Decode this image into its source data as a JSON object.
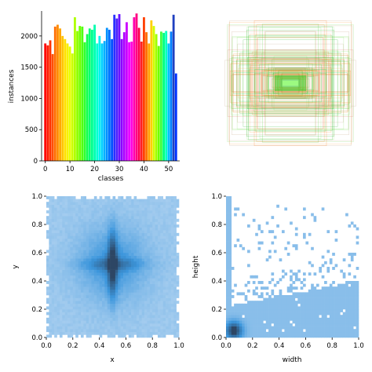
{
  "chart_data": [
    {
      "type": "bar",
      "xlabel": "classes",
      "ylabel": "instances",
      "xlim": [
        -1.5,
        54.5
      ],
      "ylim": [
        0,
        2400
      ],
      "xticks": [
        0,
        10,
        20,
        30,
        40,
        50
      ],
      "yticks": [
        0,
        500,
        1000,
        1500,
        2000
      ],
      "categories": [
        0,
        1,
        2,
        3,
        4,
        5,
        6,
        7,
        8,
        9,
        10,
        11,
        12,
        13,
        14,
        15,
        16,
        17,
        18,
        19,
        20,
        21,
        22,
        23,
        24,
        25,
        26,
        27,
        28,
        29,
        30,
        31,
        32,
        33,
        34,
        35,
        36,
        37,
        38,
        39,
        40,
        41,
        42,
        43,
        44,
        45,
        46,
        47,
        48,
        49,
        50,
        51,
        52,
        53
      ],
      "values": [
        1880,
        1850,
        1930,
        1710,
        2150,
        2180,
        2120,
        2000,
        1950,
        1880,
        1830,
        1720,
        2300,
        2080,
        2160,
        2150,
        1900,
        2030,
        2120,
        2100,
        2180,
        1880,
        2000,
        1880,
        1920,
        2130,
        2100,
        1950,
        2340,
        2280,
        2350,
        1950,
        2060,
        2220,
        1900,
        1910,
        2300,
        2360,
        2130,
        1910,
        2300,
        2060,
        1880,
        2250,
        2160,
        2030,
        1840,
        2070,
        2050,
        2080,
        1880,
        2070,
        2340,
        1400
      ],
      "bar_colors": [
        "#ff0000",
        "#ff1a00",
        "#ff3300",
        "#ff5000",
        "#ff6e00",
        "#ff8c00",
        "#ffa800",
        "#ffc400",
        "#ffe000",
        "#f8f000",
        "#e6ff00",
        "#ccff00",
        "#b0ff00",
        "#90ff00",
        "#70ff00",
        "#50ff10",
        "#30ff30",
        "#10ff50",
        "#00ff70",
        "#00ff90",
        "#00ffb0",
        "#00ffd0",
        "#00f0f0",
        "#00d0ff",
        "#00b0ff",
        "#0090ff",
        "#0070ff",
        "#0050ff",
        "#2a30ff",
        "#4a20ff",
        "#6a10ff",
        "#8a00ff",
        "#aa00ff",
        "#ca00ff",
        "#ea00ff",
        "#ff00e0",
        "#ff00b0",
        "#ff0080",
        "#ff0050",
        "#ff2020",
        "#ff4000",
        "#ff7000",
        "#ffa000",
        "#ffd000",
        "#d0ff00",
        "#a0ff00",
        "#70ff00",
        "#40ff40",
        "#00ff80",
        "#00ffc0",
        "#00c0ff",
        "#0080ff",
        "#2040c0",
        "#0033ff"
      ],
      "grid": false
    },
    {
      "type": "boxes",
      "description": "overlay of bounding-box outlines centred on image",
      "grid": false
    },
    {
      "type": "heatmap",
      "xlabel": "x",
      "ylabel": "y",
      "xlim": [
        0,
        1
      ],
      "ylim": [
        0,
        1
      ],
      "xticks": [
        0.0,
        0.2,
        0.4,
        0.6,
        0.8,
        1.0
      ],
      "yticks": [
        0.0,
        0.2,
        0.4,
        0.6,
        0.8,
        1.0
      ],
      "peak": [
        0.5,
        0.5
      ],
      "color": "#1f77b4"
    },
    {
      "type": "heatmap",
      "xlabel": "width",
      "ylabel": "height",
      "xlim": [
        0,
        1
      ],
      "ylim": [
        0,
        1
      ],
      "xticks": [
        0.0,
        0.2,
        0.4,
        0.6,
        0.8,
        1.0
      ],
      "yticks": [
        0.0,
        0.2,
        0.4,
        0.6,
        0.8,
        1.0
      ],
      "peak": [
        0.05,
        0.05
      ],
      "color": "#1f77b4"
    }
  ]
}
